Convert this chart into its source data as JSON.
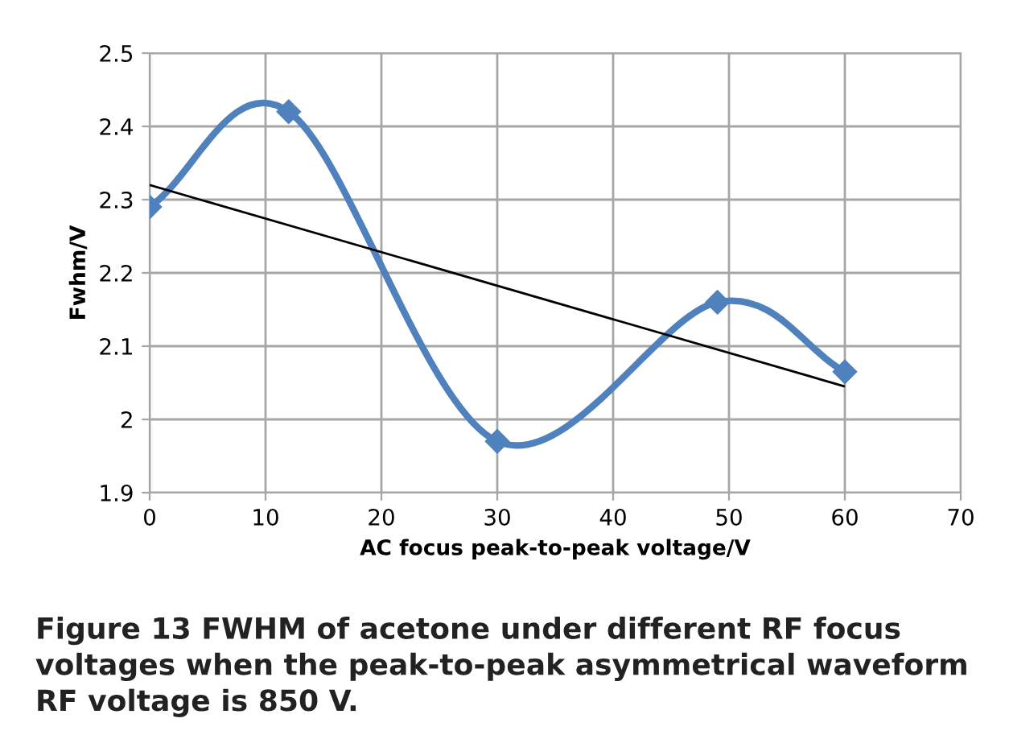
{
  "chart_data": {
    "type": "line",
    "xlabel": "AC focus peak-to-peak voltage/V",
    "ylabel": "Fwhm/V",
    "annotations": [
      "Figure 13 FWHM of acetone under different RF focus voltages when the peak-to-peak asymmetrical waveform RF voltage is 850 V."
    ],
    "series": [
      {
        "color": "#4f81bd",
        "x": [
          0,
          12,
          30,
          49,
          60
        ],
        "values": [
          2.29,
          2.42,
          1.97,
          2.16,
          2.065
        ],
        "marker": "diamond"
      },
      {
        "color": "#000000",
        "x": [
          0,
          60
        ],
        "values": [
          2.32,
          2.045
        ],
        "marker": "none"
      }
    ],
    "xlim": [
      0,
      70
    ],
    "xticks": [
      0,
      10,
      20,
      30,
      40,
      50,
      60,
      70
    ],
    "ylim": [
      1.9,
      2.5
    ],
    "yticks": [
      1.9,
      {
        "value": 2.0,
        "label": "2"
      },
      2.1,
      2.2,
      2.3,
      2.4,
      2.5
    ],
    "grid": true,
    "legend": false,
    "line_style": "solid"
  }
}
